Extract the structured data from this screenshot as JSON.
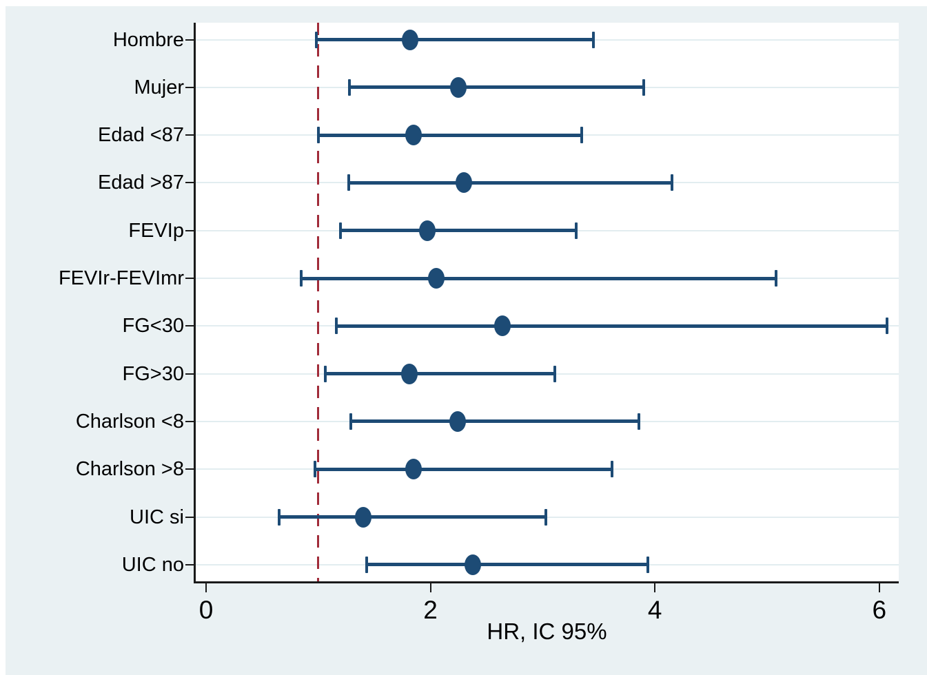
{
  "colors": {
    "background": "#eaf1f3",
    "plot_background": "#ffffff",
    "gridline": "#e2edf0",
    "series": "#1d4b75",
    "reference_line": "#a12c3a",
    "axis": "#1a1a1a",
    "text": "#000000"
  },
  "chart_data": {
    "type": "scatter",
    "subtype": "forest-plot",
    "title": "",
    "xlabel": "HR, IC 95%",
    "ylabel": "",
    "x_ticks": [
      0,
      2,
      4,
      6
    ],
    "xlim": [
      -0.1,
      6.17
    ],
    "reference_line_x": 1,
    "grid": "horizontal",
    "categories": [
      "Hombre",
      "Mujer",
      "Edad <87",
      "Edad >87",
      "FEVIp",
      "FEVIr-FEVImr",
      "FG<30",
      "FG>30",
      "Charlson <8",
      "Charlson >8",
      "UIC si",
      "UIC no"
    ],
    "series": [
      {
        "name": "HR (IC 95%)",
        "points": [
          {
            "category": "Hombre",
            "hr": 1.82,
            "lo": 0.98,
            "hi": 3.45
          },
          {
            "category": "Mujer",
            "hr": 2.25,
            "lo": 1.28,
            "hi": 3.9
          },
          {
            "category": "Edad <87",
            "hr": 1.85,
            "lo": 1.0,
            "hi": 3.35
          },
          {
            "category": "Edad >87",
            "hr": 2.3,
            "lo": 1.27,
            "hi": 4.15
          },
          {
            "category": "FEVIp",
            "hr": 1.97,
            "lo": 1.2,
            "hi": 3.3
          },
          {
            "category": "FEVIr-FEVImr",
            "hr": 2.05,
            "lo": 0.85,
            "hi": 5.08
          },
          {
            "category": "FG<30",
            "hr": 2.64,
            "lo": 1.16,
            "hi": 6.07
          },
          {
            "category": "FG>30",
            "hr": 1.81,
            "lo": 1.06,
            "hi": 3.11
          },
          {
            "category": "Charlson <8",
            "hr": 2.24,
            "lo": 1.29,
            "hi": 3.86
          },
          {
            "category": "Charlson >8",
            "hr": 1.85,
            "lo": 0.97,
            "hi": 3.62
          },
          {
            "category": "UIC si",
            "hr": 1.4,
            "lo": 0.65,
            "hi": 3.03
          },
          {
            "category": "UIC no",
            "hr": 2.38,
            "lo": 1.43,
            "hi": 3.94
          }
        ]
      }
    ]
  }
}
